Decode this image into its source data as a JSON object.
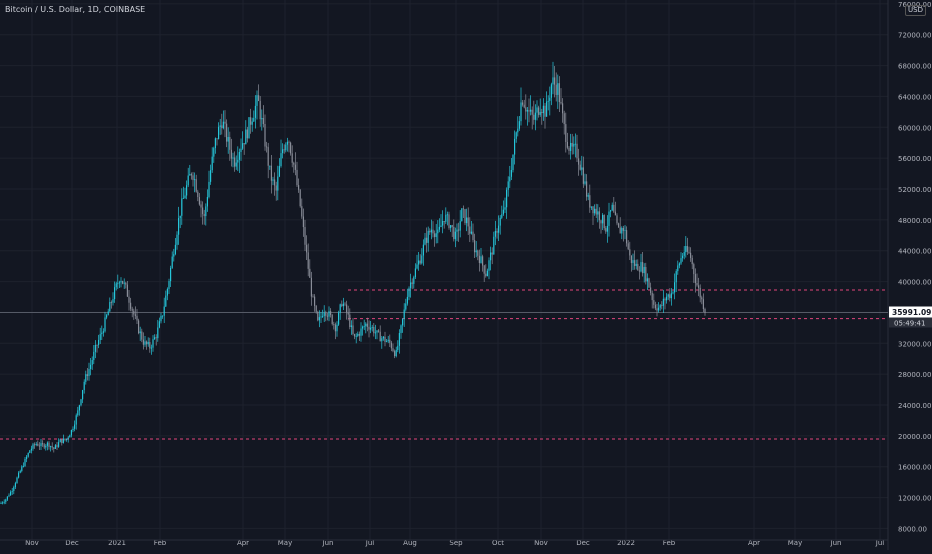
{
  "header": {
    "ticker_label": "Bitcoin / U.S. Dollar, 1D, COINBASE",
    "currency_label": "USD"
  },
  "chart_data": {
    "type": "candlestick",
    "title": "Bitcoin / U.S. Dollar, 1D, COINBASE",
    "ylim": [
      6500,
      76500
    ],
    "y_ticks": [
      "76000.00",
      "72000.00",
      "68000.00",
      "64000.00",
      "60000.00",
      "56000.00",
      "52000.00",
      "48000.00",
      "44000.00",
      "40000.00",
      "36000.00",
      "32000.00",
      "28000.00",
      "24000.00",
      "20000.00",
      "16000.00",
      "12000.00",
      "8000.00"
    ],
    "x_ticks": [
      "Nov",
      "Dec",
      "2021",
      "Feb",
      "Apr",
      "May",
      "Jun",
      "Jul",
      "Aug",
      "Sep",
      "Oct",
      "Nov",
      "Dec",
      "2022",
      "Feb",
      "Apr",
      "May",
      "Jun",
      "Jul"
    ],
    "last_price": "35991.09",
    "countdown": "05:49:41",
    "horizontal_levels": [
      38900,
      35200,
      19600
    ],
    "price_path": [
      [
        0,
        11200
      ],
      [
        6,
        11800
      ],
      [
        12,
        13000
      ],
      [
        18,
        14800
      ],
      [
        24,
        16500
      ],
      [
        30,
        18200
      ],
      [
        36,
        19000
      ],
      [
        42,
        18700
      ],
      [
        48,
        19000
      ],
      [
        54,
        18300
      ],
      [
        60,
        19300
      ],
      [
        66,
        19500
      ],
      [
        72,
        20800
      ],
      [
        78,
        23200
      ],
      [
        84,
        27000
      ],
      [
        90,
        29000
      ],
      [
        96,
        31500
      ],
      [
        102,
        33500
      ],
      [
        108,
        36000
      ],
      [
        114,
        38500
      ],
      [
        120,
        40700
      ],
      [
        126,
        39000
      ],
      [
        132,
        36500
      ],
      [
        138,
        34000
      ],
      [
        144,
        32000
      ],
      [
        150,
        31500
      ],
      [
        156,
        33000
      ],
      [
        162,
        35500
      ],
      [
        168,
        39500
      ],
      [
        174,
        44500
      ],
      [
        180,
        49000
      ],
      [
        186,
        52000
      ],
      [
        192,
        54500
      ],
      [
        198,
        51500
      ],
      [
        204,
        48000
      ],
      [
        210,
        54000
      ],
      [
        216,
        58500
      ],
      [
        222,
        61000
      ],
      [
        228,
        58000
      ],
      [
        234,
        55500
      ],
      [
        240,
        57500
      ],
      [
        246,
        59000
      ],
      [
        252,
        61500
      ],
      [
        258,
        63500
      ],
      [
        264,
        59000
      ],
      [
        270,
        54000
      ],
      [
        276,
        51500
      ],
      [
        282,
        57000
      ],
      [
        288,
        59000
      ],
      [
        294,
        55000
      ],
      [
        300,
        50000
      ],
      [
        306,
        44000
      ],
      [
        312,
        38000
      ],
      [
        318,
        34500
      ],
      [
        324,
        36500
      ],
      [
        330,
        35500
      ],
      [
        336,
        34000
      ],
      [
        342,
        37500
      ],
      [
        348,
        35500
      ],
      [
        354,
        32500
      ],
      [
        360,
        33500
      ],
      [
        366,
        34500
      ],
      [
        372,
        34000
      ],
      [
        378,
        33000
      ],
      [
        384,
        32500
      ],
      [
        390,
        32000
      ],
      [
        396,
        30500
      ],
      [
        402,
        34500
      ],
      [
        408,
        39000
      ],
      [
        414,
        41000
      ],
      [
        420,
        43000
      ],
      [
        426,
        45500
      ],
      [
        432,
        47000
      ],
      [
        438,
        46000
      ],
      [
        444,
        48500
      ],
      [
        450,
        47500
      ],
      [
        456,
        45500
      ],
      [
        462,
        49000
      ],
      [
        468,
        47500
      ],
      [
        474,
        44500
      ],
      [
        480,
        43000
      ],
      [
        486,
        41000
      ],
      [
        492,
        44000
      ],
      [
        498,
        47500
      ],
      [
        504,
        49000
      ],
      [
        510,
        54000
      ],
      [
        516,
        59000
      ],
      [
        522,
        64000
      ],
      [
        528,
        62000
      ],
      [
        534,
        61000
      ],
      [
        540,
        63000
      ],
      [
        546,
        62000
      ],
      [
        552,
        66000
      ],
      [
        558,
        65000
      ],
      [
        564,
        60000
      ],
      [
        570,
        57000
      ],
      [
        576,
        57000
      ],
      [
        582,
        54500
      ],
      [
        588,
        50500
      ],
      [
        594,
        49500
      ],
      [
        600,
        48500
      ],
      [
        606,
        47000
      ],
      [
        612,
        49500
      ],
      [
        618,
        46500
      ],
      [
        624,
        47000
      ],
      [
        630,
        43000
      ],
      [
        636,
        42000
      ],
      [
        642,
        42000
      ],
      [
        648,
        40000
      ],
      [
        654,
        37000
      ],
      [
        660,
        36500
      ],
      [
        666,
        38000
      ],
      [
        672,
        38500
      ],
      [
        678,
        42000
      ],
      [
        684,
        44000
      ],
      [
        690,
        43500
      ],
      [
        696,
        40000
      ],
      [
        702,
        37500
      ],
      [
        706,
        36000
      ]
    ]
  }
}
